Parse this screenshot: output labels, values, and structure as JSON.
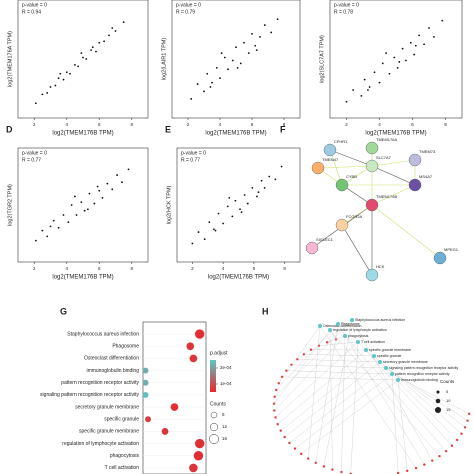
{
  "chart_data": [
    {
      "type": "scatter",
      "x_label": "log2(TMEM176B TPM)",
      "y_label": "log2(TMEM176A TPM)",
      "stats": [
        "p-value = 0",
        "R = 0.94"
      ],
      "xlim": [
        1,
        9
      ],
      "ylim": [
        0.5,
        8.5
      ],
      "xticks": [
        2,
        4,
        6,
        8
      ],
      "color": "#111111",
      "x": [
        2.1,
        2.5,
        2.8,
        3.0,
        3.3,
        3.5,
        3.8,
        4.0,
        4.2,
        4.5,
        4.7,
        5.0,
        5.2,
        5.5,
        5.8,
        6.0,
        6.3,
        6.6,
        7.0,
        7.5,
        4.9,
        5.6,
        6.8,
        3.6
      ],
      "y": [
        1.5,
        2.1,
        2.2,
        2.6,
        2.7,
        3.2,
        3.1,
        3.6,
        3.5,
        4.1,
        4.0,
        4.6,
        4.5,
        5.1,
        5.0,
        5.6,
        5.7,
        6.1,
        6.4,
        7.0,
        4.9,
        5.3,
        6.6,
        3.5
      ]
    },
    {
      "type": "scatter",
      "panel_label": null,
      "x_label": "log2(TMEM176B TPM)",
      "y_label": "log2(LAIR1 TPM)",
      "stats": [
        "p-value = 0",
        "R = 0.79"
      ],
      "xlim": [
        1,
        9
      ],
      "ylim": [
        0.5,
        8.5
      ],
      "xticks": [
        2,
        4,
        6,
        8
      ],
      "color": "#111111",
      "x": [
        2.2,
        2.6,
        3.0,
        3.2,
        3.5,
        3.8,
        4.0,
        4.3,
        4.5,
        4.8,
        5.0,
        5.3,
        5.5,
        5.8,
        6.0,
        6.2,
        6.5,
        6.8,
        7.2,
        7.6,
        4.1,
        5.1,
        6.3,
        3.4
      ],
      "y": [
        1.8,
        2.8,
        2.3,
        3.5,
        2.9,
        3.9,
        3.2,
        4.6,
        3.8,
        4.4,
        5.3,
        4.2,
        5.6,
        4.9,
        6.2,
        5.4,
        6.0,
        6.8,
        6.3,
        7.2,
        4.9,
        3.9,
        5.1,
        2.6
      ]
    },
    {
      "type": "scatter",
      "x_label": "log2(TMEM176B TPM)",
      "y_label": "log2(SLC7A7 TPM)",
      "stats": [
        "p-value = 0",
        "R = 0.78"
      ],
      "xlim": [
        1,
        9
      ],
      "ylim": [
        0.5,
        8.5
      ],
      "xticks": [
        2,
        4,
        6,
        8
      ],
      "color": "#111111",
      "x": [
        2.0,
        2.4,
        2.9,
        3.1,
        3.4,
        3.7,
        4.0,
        4.2,
        4.6,
        4.9,
        5.1,
        5.4,
        5.6,
        5.9,
        6.1,
        6.4,
        6.7,
        7.0,
        7.3,
        7.8,
        4.4,
        5.2,
        6.2,
        3.3
      ],
      "y": [
        1.6,
        2.4,
        2.0,
        3.1,
        2.6,
        3.6,
        2.9,
        4.2,
        3.5,
        4.6,
        3.9,
        5.2,
        4.4,
        5.6,
        4.8,
        6.1,
        5.5,
        6.6,
        6.0,
        7.1,
        4.9,
        4.3,
        5.4,
        2.4
      ]
    },
    {
      "type": "scatter",
      "panel_label": "D",
      "x_label": "log2(TMEM176B TPM)",
      "y_label": "log2(TGR2 TPM)",
      "stats": [
        "p-value = 0",
        "R = 0.77"
      ],
      "xlim": [
        1,
        9
      ],
      "ylim": [
        0.5,
        8.5
      ],
      "xticks": [
        2,
        4,
        6,
        8
      ],
      "color": "#111111",
      "x": [
        2.1,
        2.5,
        2.8,
        3.2,
        3.5,
        3.8,
        4.1,
        4.3,
        4.6,
        4.9,
        5.1,
        5.4,
        5.7,
        5.9,
        6.2,
        6.5,
        6.8,
        7.1,
        7.4,
        7.8,
        4.5,
        5.3,
        6.0,
        3.0
      ],
      "y": [
        2.0,
        2.7,
        2.3,
        3.4,
        2.9,
        3.8,
        3.3,
        4.5,
        3.8,
        4.7,
        4.1,
        5.3,
        4.6,
        5.8,
        5.0,
        6.0,
        5.6,
        6.6,
        6.1,
        7.0,
        5.1,
        4.2,
        5.5,
        3.0
      ]
    },
    {
      "type": "scatter",
      "panel_label": "E",
      "x_label": "log2(TMEM176B TPM)",
      "y_label": "log2(HCK TPM)",
      "stats": [
        "p-value = 0",
        "R = 0.77"
      ],
      "xlim": [
        1,
        9
      ],
      "ylim": [
        0.5,
        8.5
      ],
      "xticks": [
        2,
        4,
        6,
        8
      ],
      "color": "#111111",
      "x": [
        2.0,
        2.4,
        2.8,
        3.1,
        3.4,
        3.7,
        4.0,
        4.3,
        4.6,
        4.8,
        5.1,
        5.4,
        5.6,
        5.9,
        6.2,
        6.5,
        6.7,
        7.0,
        7.4,
        7.8,
        4.4,
        5.2,
        6.3,
        3.5
      ],
      "y": [
        1.8,
        2.6,
        2.1,
        3.3,
        2.8,
        3.9,
        3.2,
        4.4,
        3.7,
        4.8,
        4.2,
        5.2,
        4.6,
        5.7,
        5.1,
        6.2,
        5.7,
        6.5,
        6.3,
        7.2,
        5.0,
        4.0,
        5.4,
        2.7
      ]
    },
    {
      "type": "dot",
      "panel_label": "G",
      "xlim": [
        0.02,
        0.12
      ],
      "categories": [
        "Staphylococcus aureus infection",
        "Phagosome",
        "Osteoclast differentiation",
        "immunoglobulin binding",
        "pattern recognition receptor activity",
        "signaling pattern recognition receptor activity",
        "secretory granule membrane",
        "specific granule",
        "specific granule membrane",
        "regulation of lymphocyte activation",
        "phagocytosis",
        "T cell activation"
      ],
      "values": [
        0.11,
        0.095,
        0.1,
        0.024,
        0.024,
        0.024,
        0.07,
        0.028,
        0.055,
        0.11,
        0.108,
        0.1
      ],
      "sizes": [
        16,
        12,
        12,
        8,
        8,
        8,
        12,
        8,
        10,
        16,
        16,
        14
      ],
      "padjust": [
        6e-05,
        7e-05,
        7e-05,
        0.00022,
        0.00022,
        0.00024,
        6e-05,
        8e-05,
        7e-05,
        6e-05,
        6e-05,
        7e-05
      ],
      "color_legend": {
        "title": "p.adjust",
        "lim": [
          5e-05,
          0.00025
        ],
        "colors": [
          "#e8262b",
          "#5cc6c6"
        ],
        "ticks": [
          {
            "value": 0.0002,
            "label": "2e-04"
          },
          {
            "value": 0.0001,
            "label": "1e-04"
          }
        ]
      },
      "size_legend": {
        "title": "Counts",
        "values": [
          8,
          12,
          16
        ]
      }
    }
  ],
  "network_f": {
    "panel_label": "F",
    "nodes": [
      "CFHR1",
      "TMEM176A",
      "TMEM47",
      "SLC7A7",
      "TMEM73",
      "CYBB",
      "MS4A7",
      "TMEM176B",
      "SIGLEC1",
      "MPEG1",
      "FCGR2A",
      "HCK"
    ]
  },
  "network_h": {
    "panel_label": "H",
    "terms": [
      "regulation of lymphocyte activation",
      "phagocytosis",
      "T cell activation",
      "specific granule membrane",
      "specific granule",
      "secretory granule membrane",
      "signaling pattern recognition receptor activity",
      "pattern recognition receptor activity",
      "immunoglobulin binding",
      "Osteoclast differentiation",
      "Phagosome",
      "Staphylococcus aureus infection"
    ],
    "size_legend": {
      "title": "Counts",
      "values": [
        5,
        10,
        15
      ]
    }
  }
}
